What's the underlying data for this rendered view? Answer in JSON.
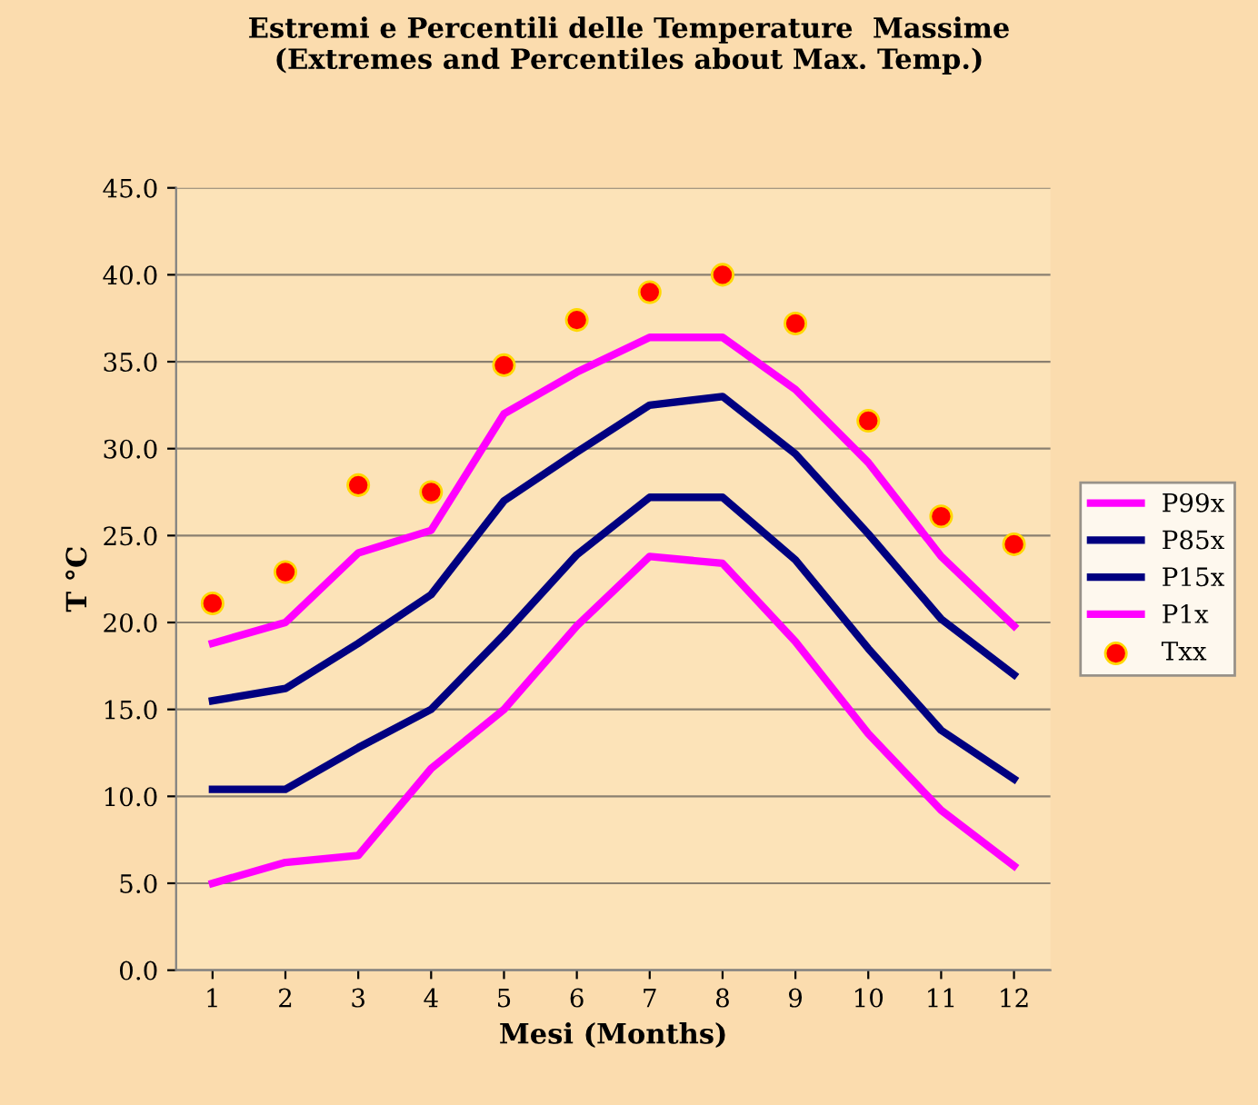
{
  "chart_data": {
    "type": "line",
    "title": "Estremi e Percentili delle Temperature  Massime\n(Extremes and Percentiles about Max. Temp.)",
    "xlabel": "Mesi (Months)",
    "ylabel": "T °C",
    "categories": [
      "1",
      "2",
      "3",
      "4",
      "5",
      "6",
      "7",
      "8",
      "9",
      "10",
      "11",
      "12"
    ],
    "series": [
      {
        "name": "P99x",
        "color": "#ff00ff",
        "values": [
          18.8,
          20.0,
          24.0,
          25.3,
          32.0,
          34.4,
          36.4,
          36.4,
          33.4,
          29.2,
          23.8,
          19.8
        ]
      },
      {
        "name": "P85x",
        "color": "#000080",
        "values": [
          15.5,
          16.2,
          18.8,
          21.6,
          27.0,
          29.8,
          32.5,
          33.0,
          29.7,
          25.1,
          20.2,
          17.0
        ]
      },
      {
        "name": "P15x",
        "color": "#000080",
        "values": [
          10.4,
          10.4,
          12.8,
          15.0,
          19.3,
          23.9,
          27.2,
          27.2,
          23.6,
          18.5,
          13.8,
          11.0
        ]
      },
      {
        "name": "P1x",
        "color": "#ff00ff",
        "values": [
          5.0,
          6.2,
          6.6,
          11.6,
          15.0,
          19.8,
          23.8,
          23.4,
          18.9,
          13.6,
          9.2,
          6.0
        ]
      },
      {
        "name": "Txx",
        "type": "scatter",
        "marker": "circle",
        "color": "#ff0000",
        "values": [
          21.1,
          22.9,
          27.9,
          27.5,
          34.8,
          37.4,
          39.0,
          40.0,
          37.2,
          31.6,
          26.1,
          24.5
        ]
      }
    ],
    "ylim": [
      0,
      45
    ],
    "yticks": [
      {
        "value": 0,
        "label": "0.0"
      },
      {
        "value": 5,
        "label": "5.0"
      },
      {
        "value": 10,
        "label": "10.0"
      },
      {
        "value": 15,
        "label": "15.0"
      },
      {
        "value": 20,
        "label": "20.0"
      },
      {
        "value": 25,
        "label": "25.0"
      },
      {
        "value": 30,
        "label": "30.0"
      },
      {
        "value": 35,
        "label": "35.0"
      },
      {
        "value": 40,
        "label": "40.0"
      },
      {
        "value": 45,
        "label": "45.0"
      }
    ],
    "grid": "y",
    "legend": "right"
  }
}
